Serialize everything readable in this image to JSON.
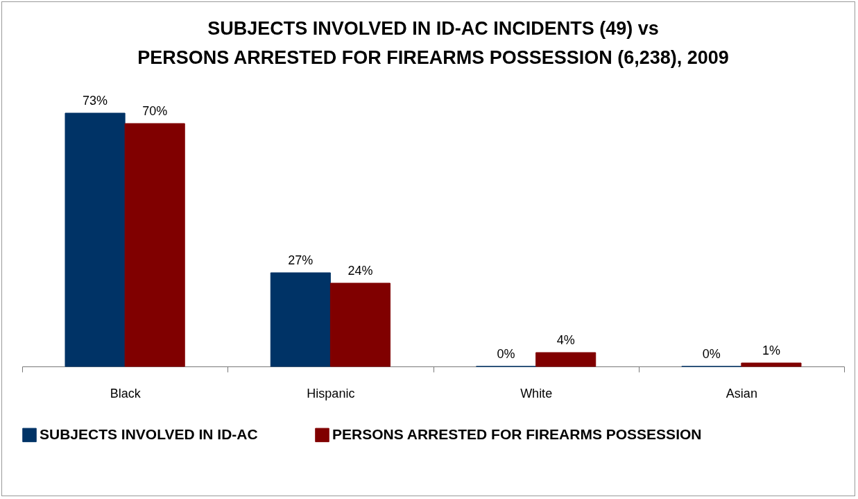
{
  "chart_data": {
    "type": "bar",
    "title": "SUBJECTS INVOLVED IN ID-AC INCIDENTS (49) vs\nPERSONS ARRESTED FOR FIREARMS POSSESSION (6,238), 2009",
    "categories": [
      "Black",
      "Hispanic",
      "White",
      "Asian"
    ],
    "series": [
      {
        "name": "SUBJECTS INVOLVED IN ID-AC",
        "color": "#003366",
        "values": [
          73,
          27,
          0,
          0
        ],
        "value_labels": [
          "73%",
          "27%",
          "0%",
          "0%"
        ]
      },
      {
        "name": "PERSONS ARRESTED FOR FIREARMS POSSESSION",
        "color": "#800000",
        "values": [
          70,
          24,
          4,
          1
        ],
        "value_labels": [
          "70%",
          "24%",
          "4%",
          "1%"
        ]
      }
    ],
    "legend": "bottom"
  }
}
